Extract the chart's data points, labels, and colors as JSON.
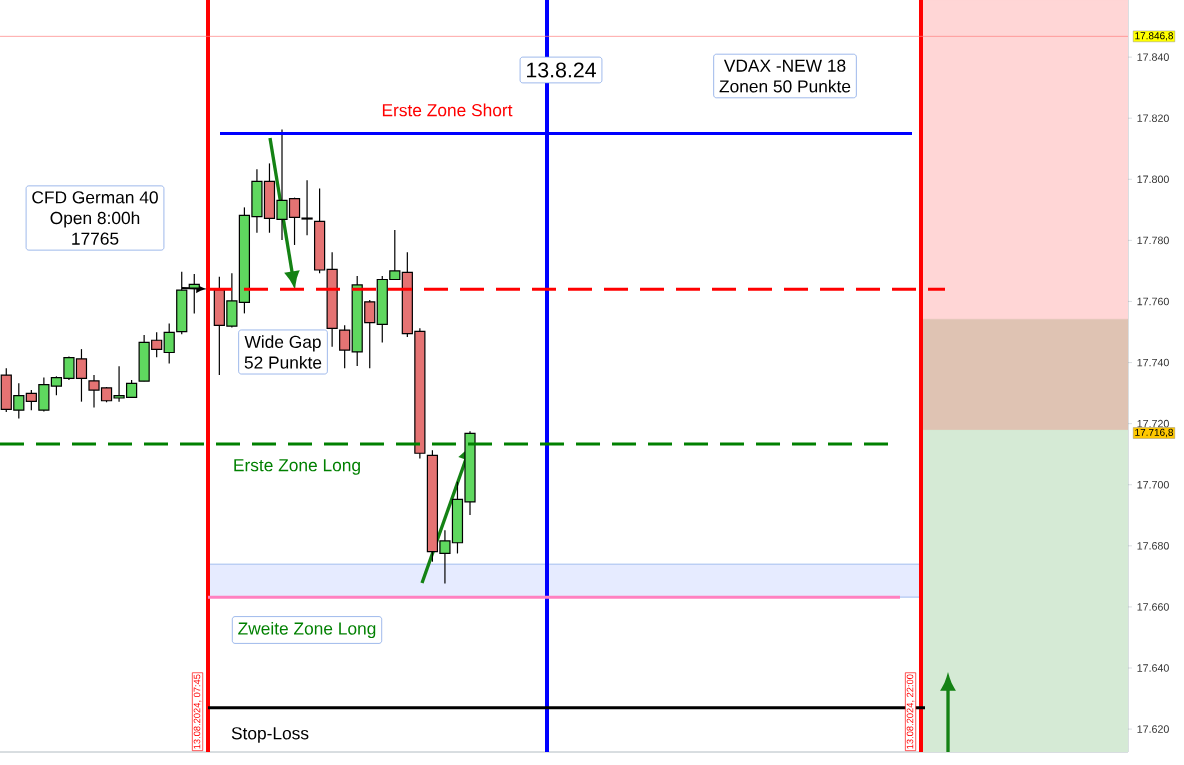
{
  "chart_data": {
    "type": "candlestick",
    "categories": [
      null,
      null,
      null,
      null,
      null,
      null,
      null,
      null,
      null,
      null,
      null,
      null,
      null,
      null,
      null,
      null,
      null,
      null,
      null,
      null,
      null,
      null,
      null,
      null,
      null,
      null,
      null,
      null,
      null,
      null,
      null,
      null,
      null,
      null,
      null,
      null,
      null,
      null,
      null,
      null,
      null,
      null,
      null,
      null,
      null,
      null,
      null,
      null,
      null,
      null,
      null,
      null,
      null,
      null,
      null,
      null,
      null,
      null,
      null,
      null,
      null,
      null,
      null,
      null,
      null,
      null,
      null,
      null,
      null,
      null,
      null,
      null,
      null,
      null,
      null,
      null,
      null,
      null,
      null,
      null,
      null,
      null,
      null,
      null,
      null,
      null,
      null,
      null,
      null,
      null
    ],
    "ohlc": [
      [
        17735.9,
        17738.1,
        17723.8,
        17724.7
      ],
      [
        17724.4,
        17733.2,
        17721.7,
        17729.2
      ],
      [
        17729.9,
        17731.0,
        17724.4,
        17727.3
      ],
      [
        17724.4,
        17735.1,
        17724.0,
        17732.8
      ],
      [
        17732.3,
        17735.5,
        17729.3,
        17735.1
      ],
      [
        17734.8,
        17742.0,
        17734.3,
        17741.6
      ],
      [
        17741.2,
        17744.4,
        17727.2,
        17734.8
      ],
      [
        17734.0,
        17735.9,
        17725.3,
        17731.0
      ],
      [
        17731.7,
        17732.0,
        17727.0,
        17727.5
      ],
      [
        17728.4,
        17738.8,
        17727.2,
        17729.2
      ],
      [
        17728.6,
        17734.3,
        17728.6,
        17733.2
      ],
      [
        17733.9,
        17749.0,
        17733.9,
        17746.6
      ],
      [
        17747.3,
        17749.9,
        17741.7,
        17744.3
      ],
      [
        17743.3,
        17752.8,
        17739.7,
        17749.9
      ],
      [
        17750.1,
        17769.7,
        17749.3,
        17763.7
      ],
      [
        17764.4,
        17769.0,
        17756.1,
        17765.6
      ],
      null,
      [
        17763.9,
        17768.1,
        17735.9,
        17752.2
      ],
      [
        17751.9,
        17769.2,
        17751.5,
        17760.2
      ],
      [
        17759.7,
        17790.8,
        17756.1,
        17788.2
      ],
      [
        17787.8,
        17803.3,
        17782.5,
        17799.3
      ],
      [
        17799.3,
        17805.2,
        17782.5,
        17787.2
      ],
      [
        17786.9,
        17816.3,
        17780.1,
        17793.1
      ],
      [
        17793.7,
        17794.0,
        17778.5,
        17787.5
      ],
      [
        17787.3,
        17799.7,
        17781.7,
        17787.0
      ],
      [
        17786.2,
        17797.0,
        17769.2,
        17770.3
      ],
      [
        17770.5,
        17776.1,
        17745.2,
        17751.2
      ],
      [
        17750.6,
        17752.2,
        17738.1,
        17744.1
      ],
      [
        17743.5,
        17768.3,
        17738.9,
        17765.4
      ],
      [
        17759.9,
        17760.5,
        17738.1,
        17753.1
      ],
      [
        17752.5,
        17768.3,
        17746.6,
        17767.2
      ],
      [
        17767.2,
        17783.4,
        17767.0,
        17770.0
      ],
      [
        17769.5,
        17776.1,
        17748.4,
        17749.5
      ],
      [
        17750.2,
        17751.2,
        17708.6,
        17710.3
      ],
      [
        17709.6,
        17711.3,
        17674.8,
        17678.1
      ],
      [
        17677.5,
        17685.1,
        17667.7,
        17681.6
      ],
      [
        17681.0,
        17701.0,
        17677.5,
        17695.2
      ],
      [
        17694.4,
        17717.5,
        17690.1,
        17716.8
      ],
      null,
      null,
      null,
      null,
      null,
      null,
      null,
      null,
      null,
      null,
      null,
      null,
      null,
      null,
      null,
      null,
      null,
      null,
      null,
      null,
      null,
      null,
      null,
      null,
      null,
      null,
      null,
      null,
      null,
      null,
      null,
      null,
      null,
      null,
      null,
      null,
      null,
      null,
      null,
      null,
      null,
      null,
      null,
      null,
      null,
      null,
      null,
      null,
      null,
      null,
      null,
      null
    ],
    "colors": [
      "#e57373",
      "#5fd85f",
      "#e57373",
      "#5fd85f",
      "#5fd85f",
      "#5fd85f",
      "#e57373",
      "#e57373",
      "#e57373",
      "#5fd85f",
      "#5fd85f",
      "#5fd85f",
      "#e57373",
      "#5fd85f",
      "#5fd85f",
      "#5fd85f",
      null,
      "#e57373",
      "#5fd85f",
      "#5fd85f",
      "#5fd85f",
      "#e57373",
      "#5fd85f",
      "#e57373",
      "#e57373",
      "#e57373",
      "#e57373",
      "#e57373",
      "#5fd85f",
      "#e57373",
      "#5fd85f",
      "#5fd85f",
      "#e57373",
      "#e57373",
      "#e57373",
      "#5fd85f",
      "#5fd85f",
      "#5fd85f",
      null,
      null,
      null,
      null,
      null,
      null,
      null,
      null,
      null,
      null,
      null,
      null,
      null,
      null,
      null,
      null,
      null,
      null,
      null,
      null,
      null,
      null,
      null,
      null,
      null,
      null,
      null,
      null,
      null,
      null,
      null,
      null,
      null,
      null,
      null,
      null,
      null,
      null,
      null,
      null,
      null,
      null,
      null,
      null,
      null,
      null,
      null,
      null,
      null,
      null,
      null,
      null
    ],
    "ylim": [
      17612.5,
      17858.7
    ],
    "yticks": [
      {
        "value": 17620,
        "label": "17.620"
      },
      {
        "value": 17640,
        "label": "17.640"
      },
      {
        "value": 17660,
        "label": "17.660"
      },
      {
        "value": 17680,
        "label": "17.680"
      },
      {
        "value": 17700,
        "label": "17.700"
      },
      {
        "value": 17720,
        "label": "17.720"
      },
      {
        "value": 17740,
        "label": "17.740"
      },
      {
        "value": 17760,
        "label": "17.760"
      },
      {
        "value": 17780,
        "label": "17.780"
      },
      {
        "value": 17800,
        "label": "17.800"
      },
      {
        "value": 17820,
        "label": "17.820"
      },
      {
        "value": 17840,
        "label": "17.840"
      }
    ],
    "tick_labels": "y",
    "ref_lines": [
      {
        "axis": "y",
        "value": 17815,
        "label": "Erste Zone Short",
        "color": "#0000ff",
        "line_style": "solid"
      },
      {
        "axis": "y",
        "value": 17764,
        "color": "#ff0000",
        "line_style": "dashed"
      },
      {
        "axis": "y",
        "value": 17713.3,
        "label": "Erste Zone Long",
        "color": "#008000",
        "line_style": "dashed"
      },
      {
        "axis": "y",
        "value": 17627,
        "label": "Stop-Loss",
        "color": "#000000",
        "line_style": "solid"
      },
      {
        "axis": "y",
        "value": 17846.8,
        "label": "17.846,8",
        "color": "#ff8080",
        "line_style": "solid"
      },
      {
        "axis": "y",
        "value": 17663.2,
        "color": "#ff80c0",
        "line_style": "solid"
      }
    ],
    "bands": [
      {
        "axis": "y",
        "from": 17663.2,
        "to": 17674,
        "label": "Zweite Zone Long",
        "color": "#e6ebff"
      },
      {
        "axis": "y",
        "from": 17754.2,
        "to": 17858.7,
        "color": "#ffd6d6"
      },
      {
        "axis": "y",
        "from": 17717.9,
        "to": 17754.2,
        "color": "#dfc3b3"
      },
      {
        "axis": "y",
        "from": 17612.5,
        "to": 17717.9,
        "color": "#d5ead5"
      }
    ],
    "annotations": [
      "CFD German 40",
      "Open 8:00h",
      "17765",
      "Wide Gap",
      "52 Punkte",
      "VDAX -NEW 18",
      "Zonen 50 Punkte",
      "17.716,8",
      "13.08.2024, 07:45",
      "13.08.2024, 22:00",
      "13.8.24"
    ]
  }
}
